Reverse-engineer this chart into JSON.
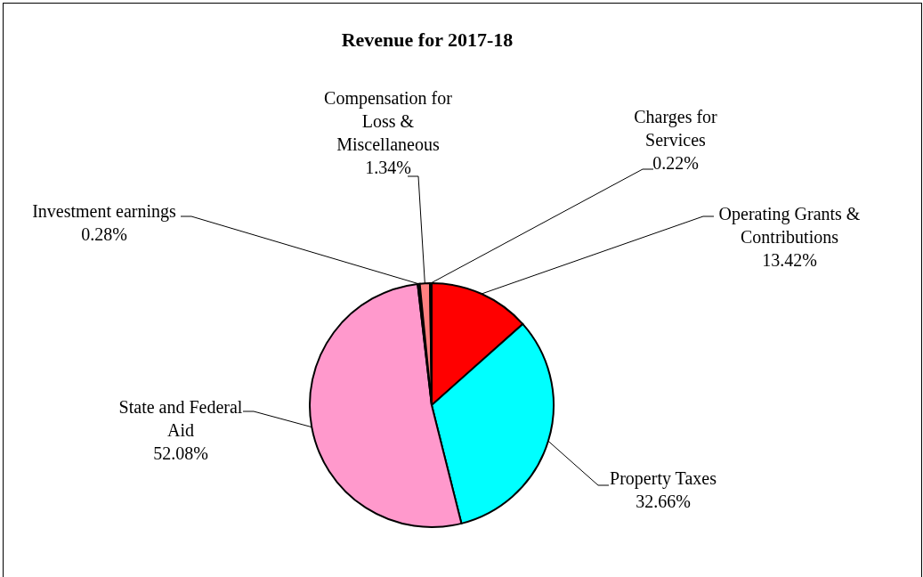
{
  "chart_data": {
    "type": "pie",
    "title": "Revenue for 2017-18",
    "categories": [
      "Operating Grants & Contributions",
      "Property Taxes",
      "State and Federal Aid",
      "Investment earnings",
      "Compensation for Loss & Miscellaneous",
      "Charges for Services"
    ],
    "values": [
      13.42,
      32.66,
      52.08,
      0.28,
      1.34,
      0.22
    ],
    "value_labels": [
      "13.42%",
      "32.66%",
      "52.08%",
      "0.28%",
      "1.34%",
      "0.22%"
    ],
    "colors": [
      "#ff0000",
      "#00ffff",
      "#ff99cc",
      "#1a1a1a",
      "#ff8080",
      "#1a1a1a"
    ],
    "legend": false
  }
}
